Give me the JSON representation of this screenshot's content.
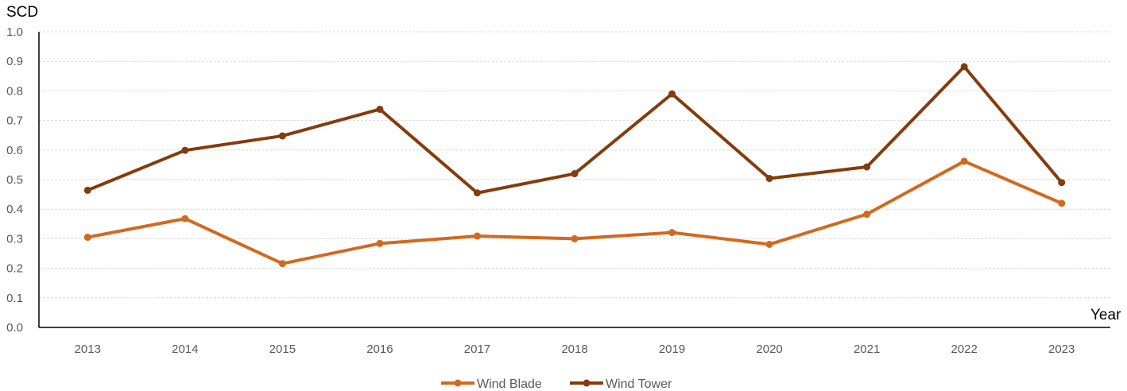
{
  "chart_data": {
    "type": "line",
    "title": "",
    "xlabel": "Year",
    "ylabel": "SCD",
    "ylim": [
      0,
      1.0
    ],
    "ytick_step": 0.1,
    "categories": [
      "2013",
      "2014",
      "2015",
      "2016",
      "2017",
      "2018",
      "2019",
      "2020",
      "2021",
      "2022",
      "2023"
    ],
    "yticks": [
      "0.0",
      "0.1",
      "0.2",
      "0.3",
      "0.4",
      "0.5",
      "0.6",
      "0.7",
      "0.8",
      "0.9",
      "1.0"
    ],
    "grid": true,
    "legend_position": "bottom-center",
    "series": [
      {
        "name": "Wind Blade",
        "color": "#D2691E",
        "values": [
          0.305,
          0.368,
          0.216,
          0.284,
          0.309,
          0.3,
          0.321,
          0.281,
          0.383,
          0.562,
          0.42
        ]
      },
      {
        "name": "Wind Tower",
        "color": "#843C0C",
        "values": [
          0.464,
          0.599,
          0.648,
          0.738,
          0.455,
          0.52,
          0.79,
          0.504,
          0.543,
          0.882,
          0.49
        ]
      }
    ]
  }
}
